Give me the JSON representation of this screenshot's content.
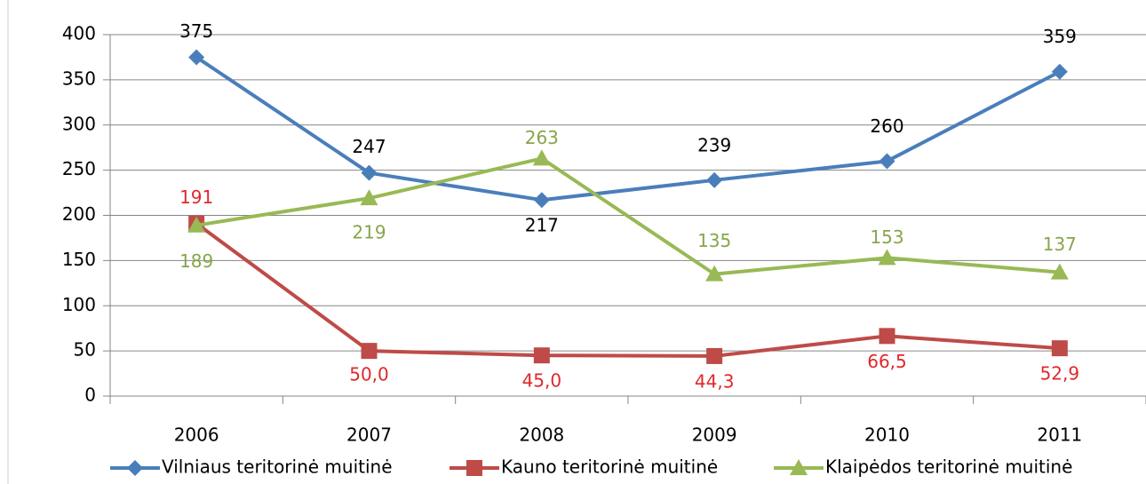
{
  "chart_data": {
    "type": "line",
    "categories": [
      "2006",
      "2007",
      "2008",
      "2009",
      "2010",
      "2011"
    ],
    "series": [
      {
        "name": "Vilniaus teritorinė muitinė",
        "color": "#4a7ebb",
        "label_color": "#000000",
        "marker": "diamond",
        "values": [
          375,
          247,
          217,
          239,
          260,
          359
        ]
      },
      {
        "name": "Kauno teritorinė muitinė",
        "color": "#be4b48",
        "label_color": "#e0282c",
        "marker": "square",
        "values": [
          191,
          50.0,
          45.0,
          44.3,
          66.5,
          52.9
        ],
        "value_labels": [
          "191",
          "50,0",
          "45,0",
          "44,3",
          "66,5",
          "52,9"
        ]
      },
      {
        "name": "Klaipėdos teritorinė muitinė",
        "color": "#98b954",
        "label_color": "#86a64a",
        "marker": "triangle",
        "values": [
          189,
          219,
          263,
          135,
          153,
          137
        ]
      }
    ],
    "ylim": [
      0,
      400
    ],
    "yticks": [
      0,
      50,
      100,
      150,
      200,
      250,
      300,
      350,
      400
    ],
    "grid": true,
    "legend": "bottom"
  }
}
